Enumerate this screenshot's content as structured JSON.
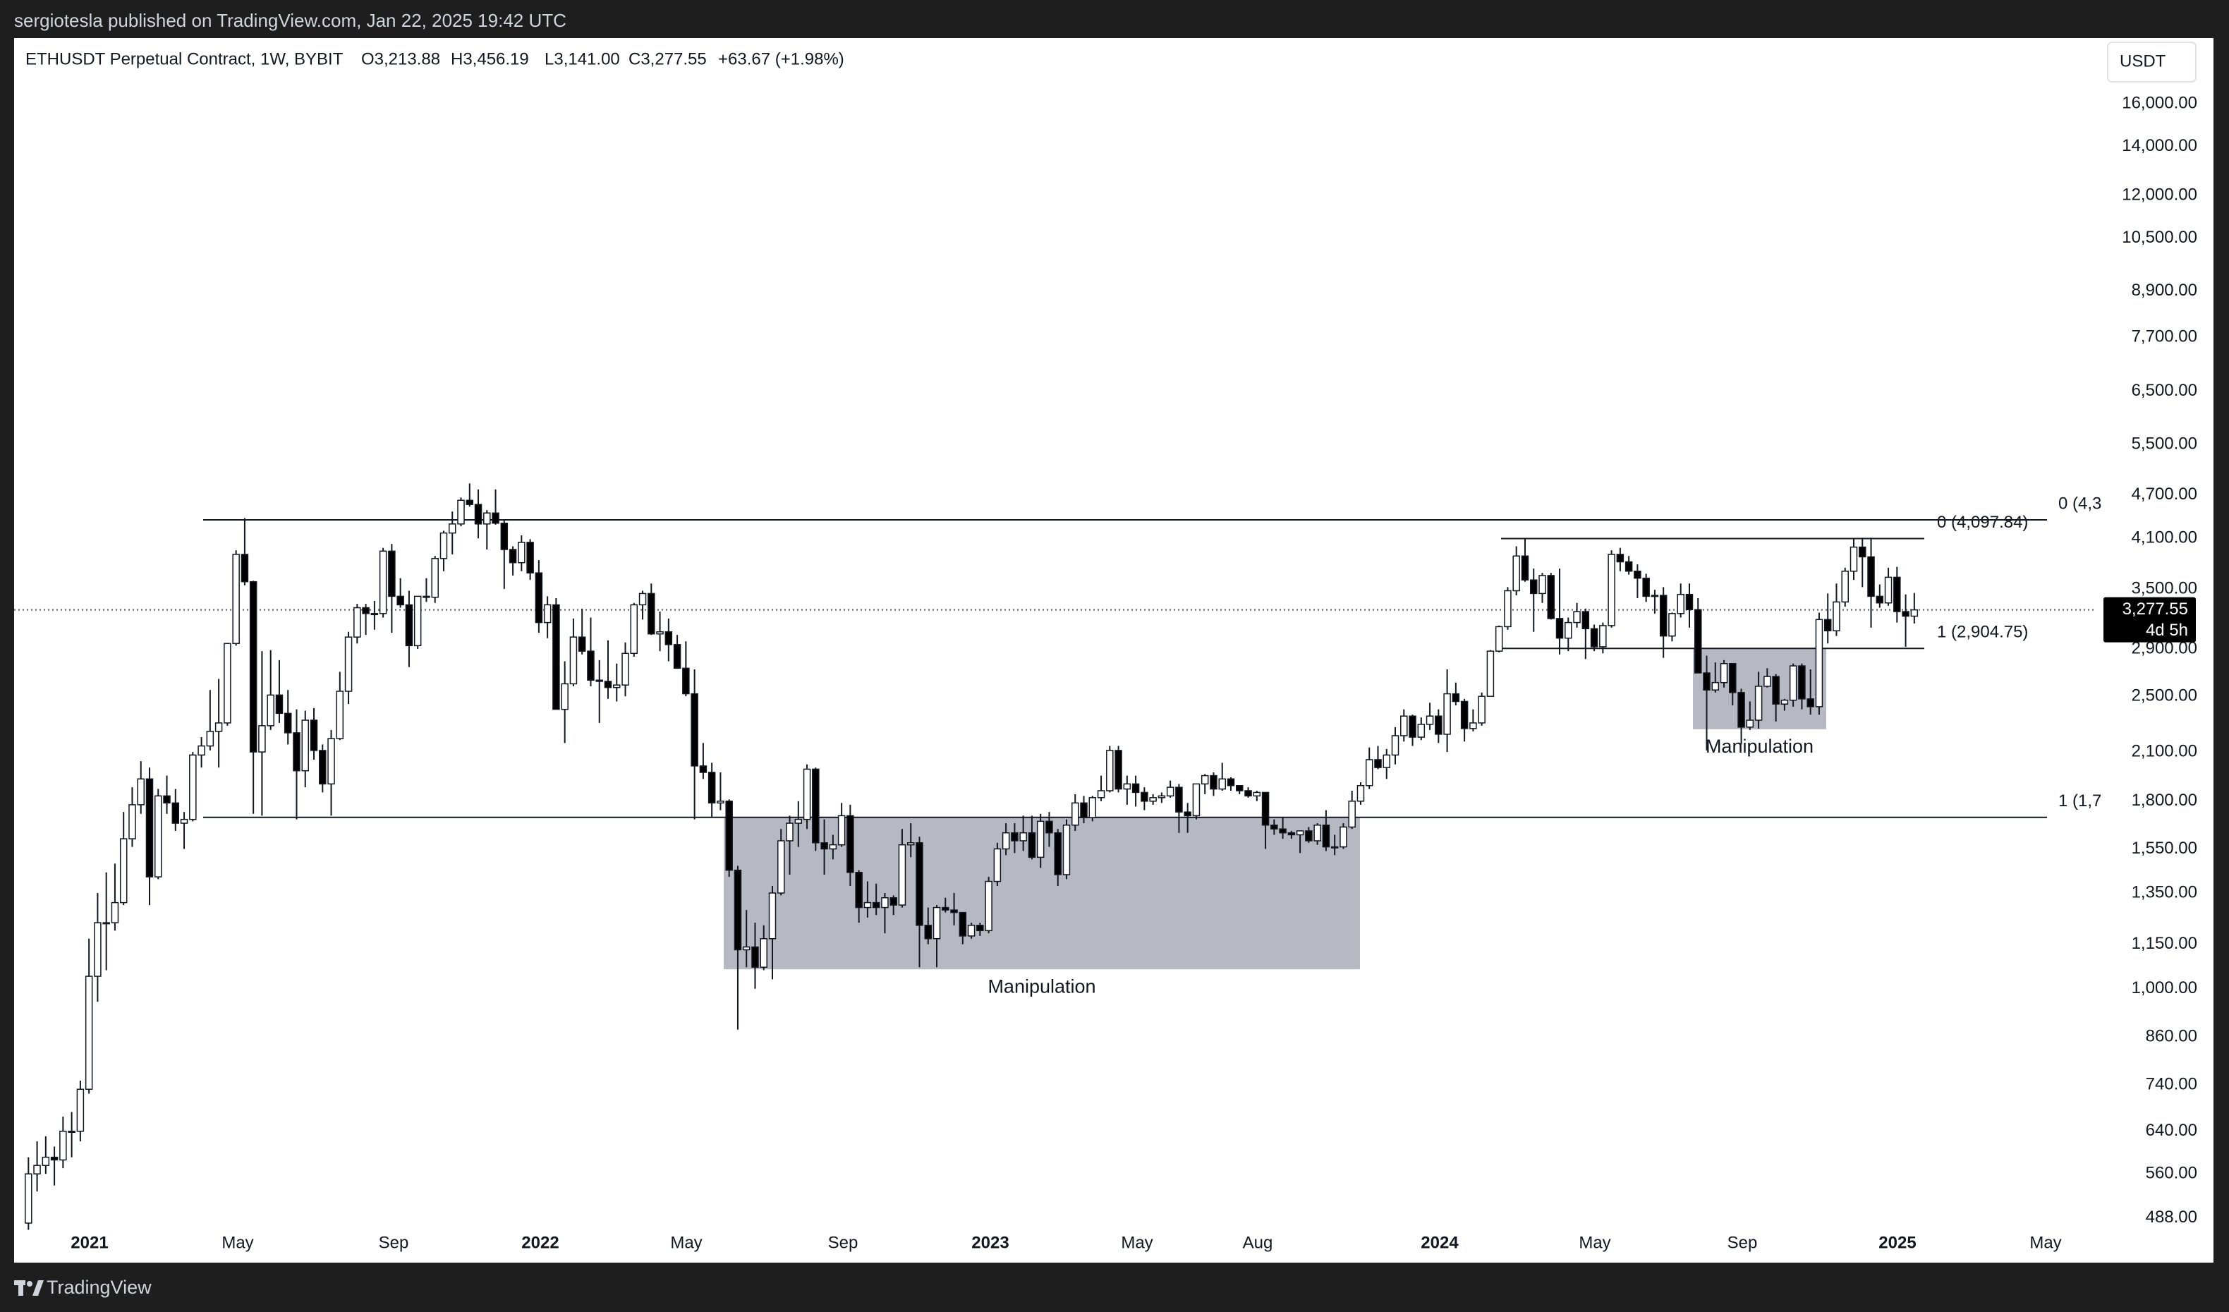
{
  "chart_data": {
    "type": "candlestick",
    "publisher": "sergiotesla published on TradingView.com, Jan 22, 2025 19:42 UTC",
    "title": "ETHUSDT Perpetual Contract, 1W, BYBIT",
    "ohlc_header": [
      "O3,213.88",
      "H3,456.19",
      "L3,141.00",
      "C3,277.55",
      "+63.67 (+1.98%)"
    ],
    "currency": "USDT",
    "brand": "TradingView",
    "log_scale": true,
    "ylim": [
      481,
      19640
    ],
    "yticks": [
      {
        "value": 16000,
        "label": "16,000.00"
      },
      {
        "value": 14000,
        "label": "14,000.00"
      },
      {
        "value": 12000,
        "label": "12,000.00"
      },
      {
        "value": 10500,
        "label": "10,500.00"
      },
      {
        "value": 8900,
        "label": "8,900.00"
      },
      {
        "value": 7700,
        "label": "7,700.00"
      },
      {
        "value": 6500,
        "label": "6,500.00"
      },
      {
        "value": 5500,
        "label": "5,500.00"
      },
      {
        "value": 4700,
        "label": "4,700.00"
      },
      {
        "value": 4100,
        "label": "4,100.00"
      },
      {
        "value": 3500,
        "label": "3,500.00"
      },
      {
        "value": 2900,
        "label": "2,900.00"
      },
      {
        "value": 2500,
        "label": "2,500.00"
      },
      {
        "value": 2100,
        "label": "2,100.00"
      },
      {
        "value": 1800,
        "label": "1,800.00"
      },
      {
        "value": 1550,
        "label": "1,550.00"
      },
      {
        "value": 1350,
        "label": "1,350.00"
      },
      {
        "value": 1150,
        "label": "1,150.00"
      },
      {
        "value": 1000,
        "label": "1,000.00"
      },
      {
        "value": 860,
        "label": "860.00"
      },
      {
        "value": 740,
        "label": "740.00"
      },
      {
        "value": 640,
        "label": "640.00"
      },
      {
        "value": 560,
        "label": "560.00"
      },
      {
        "value": 488,
        "label": "488.00"
      }
    ],
    "xticks": [
      "2021",
      "May",
      "Sep",
      "2022",
      "May",
      "Sep",
      "2023",
      "May",
      "Aug",
      "2024",
      "May",
      "Sep",
      "2025",
      "May"
    ],
    "up_color": "#ffffff",
    "down_color": "#000000",
    "candles": [
      [
        480,
        590,
        470,
        560
      ],
      [
        560,
        620,
        530,
        575
      ],
      [
        575,
        630,
        560,
        590
      ],
      [
        590,
        610,
        540,
        585
      ],
      [
        585,
        670,
        570,
        640
      ],
      [
        640,
        680,
        590,
        640
      ],
      [
        640,
        750,
        620,
        730
      ],
      [
        730,
        1170,
        720,
        1040
      ],
      [
        1040,
        1350,
        960,
        1230
      ],
      [
        1230,
        1440,
        1060,
        1230
      ],
      [
        1230,
        1480,
        1200,
        1310
      ],
      [
        1310,
        1740,
        1300,
        1600
      ],
      [
        1600,
        1880,
        1560,
        1780
      ],
      [
        1780,
        2040,
        1730,
        1930
      ],
      [
        1930,
        2000,
        1300,
        1420
      ],
      [
        1420,
        1870,
        1410,
        1830
      ],
      [
        1830,
        1950,
        1730,
        1790
      ],
      [
        1790,
        1870,
        1640,
        1680
      ],
      [
        1680,
        1740,
        1550,
        1700
      ],
      [
        1700,
        2100,
        1690,
        2080
      ],
      [
        2080,
        2200,
        2000,
        2140
      ],
      [
        2140,
        2550,
        2110,
        2240
      ],
      [
        2240,
        2640,
        2000,
        2300
      ],
      [
        2300,
        2950,
        2280,
        2950
      ],
      [
        2950,
        3950,
        2930,
        3900
      ],
      [
        3900,
        4370,
        3540,
        3580
      ],
      [
        3580,
        3590,
        1730,
        2100
      ],
      [
        2100,
        2880,
        1720,
        2280
      ],
      [
        2280,
        2890,
        2250,
        2510
      ],
      [
        2510,
        2800,
        2300,
        2370
      ],
      [
        2370,
        2550,
        2150,
        2230
      ],
      [
        2230,
        2400,
        1700,
        1980
      ],
      [
        1980,
        2390,
        1880,
        2320
      ],
      [
        2320,
        2410,
        2050,
        2110
      ],
      [
        2110,
        2150,
        1850,
        1900
      ],
      [
        1900,
        2250,
        1720,
        2190
      ],
      [
        2190,
        2700,
        2180,
        2540
      ],
      [
        2540,
        3060,
        2440,
        3010
      ],
      [
        3010,
        3340,
        2950,
        3300
      ],
      [
        3300,
        3340,
        3030,
        3240
      ],
      [
        3240,
        3370,
        3080,
        3240
      ],
      [
        3240,
        3980,
        3200,
        3940
      ],
      [
        3940,
        4030,
        3050,
        3420
      ],
      [
        3420,
        3620,
        3300,
        3330
      ],
      [
        3330,
        3480,
        2740,
        2930
      ],
      [
        2930,
        3420,
        2900,
        3420
      ],
      [
        3420,
        3620,
        3360,
        3410
      ],
      [
        3410,
        3880,
        3350,
        3850
      ],
      [
        3850,
        4200,
        3700,
        4170
      ],
      [
        4170,
        4460,
        3900,
        4290
      ],
      [
        4290,
        4660,
        4260,
        4620
      ],
      [
        4620,
        4870,
        4530,
        4560
      ],
      [
        4560,
        4780,
        4100,
        4290
      ],
      [
        4290,
        4480,
        3960,
        4440
      ],
      [
        4440,
        4780,
        4280,
        4300
      ],
      [
        4300,
        4340,
        3500,
        3960
      ],
      [
        3960,
        4000,
        3650,
        3800
      ],
      [
        3800,
        4140,
        3700,
        4050
      ],
      [
        4050,
        4090,
        3600,
        3680
      ],
      [
        3680,
        3830,
        3050,
        3150
      ],
      [
        3150,
        3420,
        3000,
        3330
      ],
      [
        3330,
        3400,
        2400,
        2400
      ],
      [
        2400,
        2790,
        2160,
        2600
      ],
      [
        2600,
        3190,
        2580,
        3010
      ],
      [
        3010,
        3290,
        2850,
        2880
      ],
      [
        2880,
        3200,
        2580,
        2630
      ],
      [
        2630,
        2800,
        2300,
        2620
      ],
      [
        2620,
        2980,
        2480,
        2570
      ],
      [
        2570,
        2770,
        2460,
        2590
      ],
      [
        2590,
        2960,
        2500,
        2860
      ],
      [
        2860,
        3350,
        2830,
        3330
      ],
      [
        3330,
        3480,
        3180,
        3450
      ],
      [
        3450,
        3560,
        3030,
        3040
      ],
      [
        3040,
        3260,
        2880,
        3060
      ],
      [
        3060,
        3190,
        2790,
        2940
      ],
      [
        2940,
        3030,
        2730,
        2730
      ],
      [
        2730,
        2970,
        2500,
        2520
      ],
      [
        2520,
        2720,
        1700,
        2010
      ],
      [
        2010,
        2160,
        1930,
        1970
      ],
      [
        1970,
        2030,
        1710,
        1790
      ],
      [
        1790,
        1970,
        1750,
        1800
      ],
      [
        1800,
        1810,
        1420,
        1450
      ],
      [
        1450,
        1470,
        880,
        1130
      ],
      [
        1130,
        1280,
        1070,
        1140
      ],
      [
        1140,
        1230,
        1000,
        1070
      ],
      [
        1070,
        1220,
        1060,
        1170
      ],
      [
        1170,
        1380,
        1030,
        1350
      ],
      [
        1350,
        1650,
        1340,
        1590
      ],
      [
        1590,
        1720,
        1430,
        1680
      ],
      [
        1680,
        1800,
        1560,
        1700
      ],
      [
        1700,
        2020,
        1650,
        1990
      ],
      [
        1990,
        2000,
        1540,
        1580
      ],
      [
        1580,
        1700,
        1430,
        1550
      ],
      [
        1550,
        1620,
        1500,
        1570
      ],
      [
        1570,
        1790,
        1560,
        1720
      ],
      [
        1720,
        1780,
        1380,
        1440
      ],
      [
        1440,
        1450,
        1230,
        1290
      ],
      [
        1290,
        1400,
        1250,
        1310
      ],
      [
        1310,
        1390,
        1260,
        1290
      ],
      [
        1290,
        1350,
        1190,
        1330
      ],
      [
        1330,
        1340,
        1260,
        1300
      ],
      [
        1300,
        1650,
        1290,
        1570
      ],
      [
        1570,
        1680,
        1510,
        1580
      ],
      [
        1580,
        1610,
        1070,
        1220
      ],
      [
        1220,
        1290,
        1150,
        1170
      ],
      [
        1170,
        1300,
        1070,
        1290
      ],
      [
        1290,
        1330,
        1270,
        1280
      ],
      [
        1280,
        1350,
        1220,
        1270
      ],
      [
        1270,
        1270,
        1150,
        1180
      ],
      [
        1180,
        1230,
        1170,
        1220
      ],
      [
        1220,
        1230,
        1180,
        1200
      ],
      [
        1200,
        1420,
        1190,
        1400
      ],
      [
        1400,
        1580,
        1380,
        1550
      ],
      [
        1550,
        1680,
        1520,
        1630
      ],
      [
        1630,
        1680,
        1530,
        1590
      ],
      [
        1590,
        1720,
        1540,
        1630
      ],
      [
        1630,
        1720,
        1500,
        1510
      ],
      [
        1510,
        1730,
        1460,
        1690
      ],
      [
        1690,
        1740,
        1560,
        1630
      ],
      [
        1630,
        1650,
        1380,
        1430
      ],
      [
        1430,
        1700,
        1410,
        1670
      ],
      [
        1670,
        1840,
        1640,
        1790
      ],
      [
        1790,
        1830,
        1680,
        1710
      ],
      [
        1710,
        1830,
        1690,
        1820
      ],
      [
        1820,
        1950,
        1800,
        1860
      ],
      [
        1860,
        2140,
        1850,
        2110
      ],
      [
        2110,
        2140,
        1850,
        1870
      ],
      [
        1870,
        1950,
        1780,
        1900
      ],
      [
        1900,
        1950,
        1770,
        1850
      ],
      [
        1850,
        1880,
        1750,
        1800
      ],
      [
        1800,
        1840,
        1780,
        1820
      ],
      [
        1820,
        1850,
        1790,
        1830
      ],
      [
        1830,
        1920,
        1820,
        1880
      ],
      [
        1880,
        1900,
        1630,
        1740
      ],
      [
        1740,
        1790,
        1630,
        1720
      ],
      [
        1720,
        1900,
        1700,
        1900
      ],
      [
        1900,
        1960,
        1840,
        1950
      ],
      [
        1950,
        1970,
        1830,
        1870
      ],
      [
        1870,
        2030,
        1860,
        1930
      ],
      [
        1930,
        1940,
        1860,
        1890
      ],
      [
        1890,
        1890,
        1840,
        1860
      ],
      [
        1860,
        1880,
        1820,
        1830
      ],
      [
        1830,
        1860,
        1800,
        1850
      ],
      [
        1850,
        1850,
        1550,
        1670
      ],
      [
        1670,
        1700,
        1620,
        1650
      ],
      [
        1650,
        1710,
        1600,
        1630
      ],
      [
        1630,
        1640,
        1600,
        1620
      ],
      [
        1620,
        1640,
        1530,
        1640
      ],
      [
        1640,
        1660,
        1580,
        1590
      ],
      [
        1590,
        1680,
        1570,
        1670
      ],
      [
        1670,
        1750,
        1540,
        1560
      ],
      [
        1560,
        1620,
        1520,
        1560
      ],
      [
        1560,
        1680,
        1550,
        1660
      ],
      [
        1660,
        1860,
        1650,
        1800
      ],
      [
        1800,
        1910,
        1780,
        1890
      ],
      [
        1890,
        2130,
        1870,
        2050
      ],
      [
        2050,
        2140,
        1990,
        2000
      ],
      [
        2000,
        2120,
        1930,
        2080
      ],
      [
        2080,
        2270,
        2020,
        2210
      ],
      [
        2210,
        2400,
        2170,
        2350
      ],
      [
        2350,
        2360,
        2140,
        2200
      ],
      [
        2200,
        2340,
        2180,
        2290
      ],
      [
        2290,
        2450,
        2250,
        2350
      ],
      [
        2350,
        2400,
        2160,
        2220
      ],
      [
        2220,
        2720,
        2100,
        2520
      ],
      [
        2520,
        2610,
        2430,
        2460
      ],
      [
        2460,
        2480,
        2170,
        2260
      ],
      [
        2260,
        2400,
        2240,
        2300
      ],
      [
        2300,
        2530,
        2280,
        2500
      ],
      [
        2500,
        2890,
        2500,
        2880
      ],
      [
        2880,
        3120,
        2870,
        3110
      ],
      [
        3110,
        3520,
        3080,
        3480
      ],
      [
        3480,
        4000,
        3430,
        3880
      ],
      [
        3880,
        4100,
        3580,
        3600
      ],
      [
        3600,
        3730,
        3060,
        3450
      ],
      [
        3450,
        3680,
        3350,
        3650
      ],
      [
        3650,
        3680,
        3180,
        3190
      ],
      [
        3190,
        3730,
        2850,
        3000
      ],
      [
        3000,
        3200,
        2880,
        3150
      ],
      [
        3150,
        3350,
        3100,
        3260
      ],
      [
        3260,
        3290,
        2810,
        3090
      ],
      [
        3090,
        3130,
        2880,
        2920
      ],
      [
        2920,
        3150,
        2860,
        3120
      ],
      [
        3120,
        3950,
        3100,
        3900
      ],
      [
        3900,
        3980,
        3700,
        3810
      ],
      [
        3810,
        3880,
        3660,
        3700
      ],
      [
        3700,
        3780,
        3400,
        3620
      ],
      [
        3620,
        3670,
        3360,
        3420
      ],
      [
        3420,
        3490,
        3240,
        3430
      ],
      [
        3430,
        3520,
        2820,
        3020
      ],
      [
        3020,
        3250,
        2970,
        3240
      ],
      [
        3240,
        3560,
        3200,
        3440
      ],
      [
        3440,
        3560,
        3100,
        3280
      ],
      [
        3280,
        3400,
        2690,
        2690
      ],
      [
        2690,
        2840,
        2110,
        2550
      ],
      [
        2550,
        2780,
        2530,
        2610
      ],
      [
        2610,
        2800,
        2570,
        2770
      ],
      [
        2770,
        2770,
        2430,
        2530
      ],
      [
        2530,
        2560,
        2150,
        2270
      ],
      [
        2270,
        2460,
        2250,
        2320
      ],
      [
        2320,
        2700,
        2260,
        2580
      ],
      [
        2580,
        2730,
        2570,
        2660
      ],
      [
        2660,
        2680,
        2310,
        2440
      ],
      [
        2440,
        2480,
        2390,
        2470
      ],
      [
        2470,
        2770,
        2420,
        2750
      ],
      [
        2750,
        2770,
        2400,
        2480
      ],
      [
        2480,
        2720,
        2360,
        2420
      ],
      [
        2420,
        3250,
        2360,
        3180
      ],
      [
        3180,
        3450,
        2950,
        3070
      ],
      [
        3070,
        3560,
        3020,
        3360
      ],
      [
        3360,
        3740,
        3310,
        3700
      ],
      [
        3700,
        4100,
        3600,
        3990
      ],
      [
        3990,
        4110,
        3520,
        3870
      ],
      [
        3870,
        4110,
        3100,
        3420
      ],
      [
        3420,
        3550,
        3300,
        3350
      ],
      [
        3350,
        3740,
        3320,
        3630
      ],
      [
        3630,
        3750,
        3150,
        3260
      ],
      [
        3260,
        3440,
        2920,
        3213.88
      ],
      [
        3213.88,
        3456.19,
        3141,
        3277.55
      ]
    ],
    "last_price": {
      "value": 3277.55,
      "label": "3,277.55",
      "countdown": "4d 5h"
    },
    "levels": [
      {
        "value": 4345,
        "label": "0 (4,3"
      },
      {
        "value": 1711,
        "label": "1 (1,7"
      },
      {
        "value": 4097.84,
        "label": "0 (4,097.84)"
      },
      {
        "value": 2904.75,
        "label": "1 (2,904.75)"
      }
    ],
    "zones": [
      {
        "label": "Manipulation",
        "top": 1711,
        "bottom": 1063
      },
      {
        "label": "Manipulation",
        "top": 2904.75,
        "bottom": 2255
      }
    ]
  }
}
